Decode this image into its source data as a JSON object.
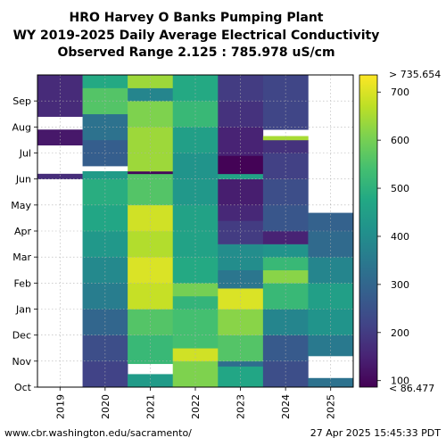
{
  "chart_data": {
    "type": "heatmap",
    "title": [
      "HRO Harvey O Banks Pumping Plant",
      "WY 2019-2025 Daily Average Electrical Conductivity",
      "Observed Range 2.125 : 785.978 uS/cm"
    ],
    "x_categories": [
      "2019",
      "2020",
      "2021",
      "2022",
      "2023",
      "2024",
      "2025"
    ],
    "y_months": [
      "Oct",
      "Nov",
      "Dec",
      "Jan",
      "Feb",
      "Mar",
      "Apr",
      "May",
      "Jun",
      "Jul",
      "Aug",
      "Sep"
    ],
    "colorbar": {
      "colormap": "viridis",
      "vmin": 86.477,
      "vmax": 735.654,
      "ticks": [
        100,
        200,
        300,
        400,
        500,
        600,
        700
      ],
      "max_label": "> 735.654",
      "min_label": "< 86.477"
    },
    "series": [
      {
        "year": "2019",
        "segments": [
          {
            "start_month": 8.0,
            "end_month": 8.2,
            "value": 170
          },
          {
            "start_month": 8.2,
            "end_month": 9.3,
            "value": null
          },
          {
            "start_month": 9.3,
            "end_month": 9.9,
            "value": 130
          },
          {
            "start_month": 9.9,
            "end_month": 10.4,
            "value": null
          },
          {
            "start_month": 10.4,
            "end_month": 12.0,
            "value": 165
          }
        ]
      },
      {
        "year": "2020",
        "segments": [
          {
            "start_month": 0.0,
            "end_month": 1.0,
            "value": 215
          },
          {
            "start_month": 1.0,
            "end_month": 2.0,
            "value": 240
          },
          {
            "start_month": 2.0,
            "end_month": 3.0,
            "value": 300
          },
          {
            "start_month": 3.0,
            "end_month": 4.0,
            "value": 360
          },
          {
            "start_month": 4.0,
            "end_month": 5.0,
            "value": 390
          },
          {
            "start_month": 5.0,
            "end_month": 6.0,
            "value": 430
          },
          {
            "start_month": 6.0,
            "end_month": 7.0,
            "value": 470
          },
          {
            "start_month": 7.0,
            "end_month": 8.0,
            "value": 490
          },
          {
            "start_month": 8.0,
            "end_month": 8.3,
            "value": 440
          },
          {
            "start_month": 8.3,
            "end_month": 8.5,
            "value": null
          },
          {
            "start_month": 8.5,
            "end_month": 9.5,
            "value": 280
          },
          {
            "start_month": 9.5,
            "end_month": 10.5,
            "value": 330
          },
          {
            "start_month": 10.5,
            "end_month": 11.5,
            "value": 560
          },
          {
            "start_month": 11.5,
            "end_month": 12.0,
            "value": 480
          }
        ]
      },
      {
        "year": "2021",
        "segments": [
          {
            "start_month": 0.0,
            "end_month": 0.5,
            "value": 440
          },
          {
            "start_month": 0.5,
            "end_month": 0.9,
            "value": null
          },
          {
            "start_month": 0.9,
            "end_month": 2.0,
            "value": 520
          },
          {
            "start_month": 2.0,
            "end_month": 3.0,
            "value": 560
          },
          {
            "start_month": 3.0,
            "end_month": 4.0,
            "value": 680
          },
          {
            "start_month": 4.0,
            "end_month": 5.0,
            "value": 700
          },
          {
            "start_month": 5.0,
            "end_month": 6.0,
            "value": 660
          },
          {
            "start_month": 6.0,
            "end_month": 7.0,
            "value": 690
          },
          {
            "start_month": 7.0,
            "end_month": 8.2,
            "value": 560
          },
          {
            "start_month": 8.2,
            "end_month": 8.3,
            "value": 100
          },
          {
            "start_month": 8.3,
            "end_month": 9.0,
            "value": 640
          },
          {
            "start_month": 9.0,
            "end_month": 10.0,
            "value": 640
          },
          {
            "start_month": 10.0,
            "end_month": 11.0,
            "value": 610
          },
          {
            "start_month": 11.0,
            "end_month": 11.5,
            "value": 380
          },
          {
            "start_month": 11.5,
            "end_month": 12.0,
            "value": 640
          }
        ]
      },
      {
        "year": "2022",
        "segments": [
          {
            "start_month": 0.0,
            "end_month": 1.0,
            "value": 610
          },
          {
            "start_month": 1.0,
            "end_month": 1.5,
            "value": 690
          },
          {
            "start_month": 1.5,
            "end_month": 3.0,
            "value": 540
          },
          {
            "start_month": 3.0,
            "end_month": 3.5,
            "value": 510
          },
          {
            "start_month": 3.5,
            "end_month": 4.0,
            "value": 600
          },
          {
            "start_month": 4.0,
            "end_month": 5.0,
            "value": 480
          },
          {
            "start_month": 5.0,
            "end_month": 7.0,
            "value": 460
          },
          {
            "start_month": 7.0,
            "end_month": 8.0,
            "value": 430
          },
          {
            "start_month": 8.0,
            "end_month": 9.0,
            "value": 420
          },
          {
            "start_month": 9.0,
            "end_month": 10.0,
            "value": 450
          },
          {
            "start_month": 10.0,
            "end_month": 11.0,
            "value": 520
          },
          {
            "start_month": 11.0,
            "end_month": 12.0,
            "value": 480
          }
        ]
      },
      {
        "year": "2023",
        "segments": [
          {
            "start_month": 0.0,
            "end_month": 0.8,
            "value": 470
          },
          {
            "start_month": 0.8,
            "end_month": 1.0,
            "value": 320
          },
          {
            "start_month": 1.0,
            "end_month": 2.0,
            "value": 560
          },
          {
            "start_month": 2.0,
            "end_month": 3.0,
            "value": 620
          },
          {
            "start_month": 3.0,
            "end_month": 3.8,
            "value": 700
          },
          {
            "start_month": 3.8,
            "end_month": 4.5,
            "value": 340
          },
          {
            "start_month": 4.5,
            "end_month": 5.5,
            "value": 400
          },
          {
            "start_month": 5.5,
            "end_month": 6.4,
            "value": 200
          },
          {
            "start_month": 6.4,
            "end_month": 7.0,
            "value": 160
          },
          {
            "start_month": 7.0,
            "end_month": 8.0,
            "value": 140
          },
          {
            "start_month": 8.0,
            "end_month": 8.2,
            "value": 460
          },
          {
            "start_month": 8.2,
            "end_month": 8.9,
            "value": 90
          },
          {
            "start_month": 8.9,
            "end_month": 10.0,
            "value": 150
          },
          {
            "start_month": 10.0,
            "end_month": 11.0,
            "value": 180
          },
          {
            "start_month": 11.0,
            "end_month": 12.0,
            "value": 200
          }
        ]
      },
      {
        "year": "2024",
        "segments": [
          {
            "start_month": 0.0,
            "end_month": 1.0,
            "value": 240
          },
          {
            "start_month": 1.0,
            "end_month": 2.0,
            "value": 270
          },
          {
            "start_month": 2.0,
            "end_month": 3.0,
            "value": 380
          },
          {
            "start_month": 3.0,
            "end_month": 4.0,
            "value": 520
          },
          {
            "start_month": 4.0,
            "end_month": 4.5,
            "value": 620
          },
          {
            "start_month": 4.5,
            "end_month": 5.0,
            "value": 520
          },
          {
            "start_month": 5.0,
            "end_month": 5.5,
            "value": 420
          },
          {
            "start_month": 5.5,
            "end_month": 6.0,
            "value": 150
          },
          {
            "start_month": 6.0,
            "end_month": 7.0,
            "value": 260
          },
          {
            "start_month": 7.0,
            "end_month": 8.0,
            "value": 240
          },
          {
            "start_month": 8.0,
            "end_month": 9.0,
            "value": 210
          },
          {
            "start_month": 9.0,
            "end_month": 9.5,
            "value": 180
          },
          {
            "start_month": 9.5,
            "end_month": 9.65,
            "value": 650
          },
          {
            "start_month": 9.65,
            "end_month": 9.9,
            "value": null
          },
          {
            "start_month": 9.9,
            "end_month": 12.0,
            "value": 220
          }
        ]
      },
      {
        "year": "2025",
        "segments": [
          {
            "start_month": 0.0,
            "end_month": 0.35,
            "value": 330
          },
          {
            "start_month": 0.35,
            "end_month": 1.2,
            "value": null
          },
          {
            "start_month": 1.2,
            "end_month": 2.0,
            "value": 350
          },
          {
            "start_month": 2.0,
            "end_month": 3.0,
            "value": 420
          },
          {
            "start_month": 3.0,
            "end_month": 4.0,
            "value": 450
          },
          {
            "start_month": 4.0,
            "end_month": 5.0,
            "value": 380
          },
          {
            "start_month": 5.0,
            "end_month": 6.0,
            "value": 310
          },
          {
            "start_month": 6.0,
            "end_month": 6.7,
            "value": 290
          }
        ]
      }
    ]
  },
  "footer": {
    "left": "www.cbr.washington.edu/sacramento/",
    "right": "27 Apr 2025 15:45:33 PDT"
  }
}
